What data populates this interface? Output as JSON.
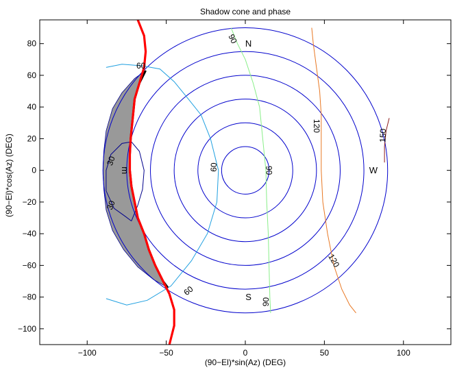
{
  "chart_data": {
    "type": "line",
    "title": "Shadow cone and phase",
    "xlabel": "(90−El)*sin(Az) (DEG)",
    "ylabel": "(90−El)*cos(Az) (DEG)",
    "xlim": [
      -130,
      130
    ],
    "ylim": [
      -110,
      95
    ],
    "xticks": [
      -100,
      -50,
      0,
      50,
      100
    ],
    "yticks": [
      -100,
      -80,
      -60,
      -40,
      -20,
      0,
      20,
      40,
      60,
      80
    ],
    "grid": false,
    "colors": {
      "circles": "#0000cc",
      "contour30": "#00008b",
      "contour60": "#1e9fe0",
      "contour90": "#88ee88",
      "contour120": "#e87722",
      "contour150": "#8b1a1a",
      "shadow_fill": "#999999",
      "shadow_edge": "#000000",
      "terminator": "#ff0000"
    },
    "elevation_circles": {
      "radii": [
        15,
        30,
        45,
        60,
        75,
        90
      ],
      "center": [
        0,
        0
      ]
    },
    "shadow_cone": {
      "inner_edge": [
        [
          -63,
          63
        ],
        [
          -67,
          55
        ],
        [
          -70,
          45
        ],
        [
          -71,
          35
        ],
        [
          -72.5,
          20
        ],
        [
          -73,
          10
        ],
        [
          -73,
          0
        ],
        [
          -72,
          -10
        ],
        [
          -70,
          -20
        ],
        [
          -68,
          -30
        ],
        [
          -64,
          -40
        ],
        [
          -61,
          -50
        ],
        [
          -57,
          -60
        ],
        [
          -52,
          -70
        ],
        [
          -49,
          -74
        ]
      ],
      "outer_edge": [
        [
          -63,
          63
        ],
        [
          -70,
          58
        ],
        [
          -78,
          49
        ],
        [
          -84,
          39
        ],
        [
          -88,
          25
        ],
        [
          -89.5,
          12
        ],
        [
          -90,
          0
        ],
        [
          -89.5,
          -12
        ],
        [
          -88,
          -25
        ],
        [
          -84,
          -38
        ],
        [
          -77,
          -50
        ],
        [
          -68,
          -61
        ],
        [
          -58,
          -69
        ],
        [
          -49,
          -74
        ]
      ]
    },
    "terminator": [
      [
        -68,
        95
      ],
      [
        -64,
        85
      ],
      [
        -63,
        75
      ],
      [
        -64,
        65
      ],
      [
        -67,
        55
      ],
      [
        -70,
        45
      ],
      [
        -71,
        35
      ],
      [
        -72.5,
        20
      ],
      [
        -73,
        10
      ],
      [
        -73,
        0
      ],
      [
        -72,
        -10
      ],
      [
        -70,
        -20
      ],
      [
        -68,
        -30
      ],
      [
        -64,
        -40
      ],
      [
        -61,
        -50
      ],
      [
        -57,
        -60
      ],
      [
        -52,
        -70
      ],
      [
        -48,
        -78
      ],
      [
        -45,
        -88
      ],
      [
        -45,
        -98
      ],
      [
        -48,
        -110
      ]
    ],
    "contours": [
      {
        "level": 30,
        "label": "30",
        "points": [
          [
            -72,
            -32
          ],
          [
            -76,
            -29
          ],
          [
            -83,
            -24
          ],
          [
            -88,
            -13
          ],
          [
            -88,
            0
          ],
          [
            -85,
            10
          ],
          [
            -78,
            17
          ],
          [
            -72,
            18
          ],
          [
            -67,
            12
          ],
          [
            -64,
            0
          ],
          [
            -65,
            -12
          ],
          [
            -68,
            -22
          ],
          [
            -72,
            -32
          ]
        ]
      },
      {
        "level": 60,
        "label": "60",
        "points": [
          [
            -88,
            65
          ],
          [
            -78,
            67
          ],
          [
            -65,
            66
          ],
          [
            -54,
            64
          ],
          [
            -45,
            56
          ],
          [
            -36,
            45
          ],
          [
            -28,
            35
          ],
          [
            -22,
            20
          ],
          [
            -17,
            0
          ],
          [
            -18,
            -20
          ],
          [
            -24,
            -40
          ],
          [
            -34,
            -57
          ],
          [
            -47,
            -73
          ],
          [
            -62,
            -82
          ],
          [
            -75,
            -85
          ],
          [
            -88,
            -81
          ]
        ]
      },
      {
        "level": 90,
        "label": "90",
        "points": [
          [
            -9,
            90
          ],
          [
            -5,
            80
          ],
          [
            0,
            70
          ],
          [
            5,
            55
          ],
          [
            9,
            40
          ],
          [
            11,
            20
          ],
          [
            13,
            0
          ],
          [
            13.5,
            -20
          ],
          [
            14.5,
            -40
          ],
          [
            15,
            -60
          ],
          [
            15.5,
            -80
          ],
          [
            16,
            -90
          ]
        ]
      },
      {
        "level": 120,
        "label": "120",
        "points": [
          [
            42,
            90
          ],
          [
            43,
            80
          ],
          [
            45,
            65
          ],
          [
            47,
            50
          ],
          [
            48,
            35
          ],
          [
            48,
            20
          ],
          [
            48,
            0
          ],
          [
            49,
            -20
          ],
          [
            52,
            -40
          ],
          [
            56,
            -60
          ],
          [
            61,
            -75
          ],
          [
            66,
            -85
          ],
          [
            70,
            -90
          ]
        ]
      },
      {
        "level": 150,
        "label": "150",
        "points": [
          [
            91,
            33
          ],
          [
            89,
            25
          ],
          [
            88,
            15
          ],
          [
            88,
            5
          ]
        ]
      }
    ],
    "contour_labels": [
      {
        "text": "90",
        "x": -8,
        "y": 83,
        "angle": 65
      },
      {
        "text": "60",
        "x": -66,
        "y": 66,
        "angle": 0
      },
      {
        "text": "120",
        "x": 45,
        "y": 28,
        "angle": 90
      },
      {
        "text": "150",
        "x": 87,
        "y": 22,
        "angle": -88
      },
      {
        "text": "30",
        "x": -85,
        "y": 6,
        "angle": -70
      },
      {
        "text": "30",
        "x": -85,
        "y": -22,
        "angle": -70
      },
      {
        "text": "60",
        "x": -20,
        "y": 2,
        "angle": -88
      },
      {
        "text": "90",
        "x": 15,
        "y": 0,
        "angle": 88
      },
      {
        "text": "120",
        "x": 56,
        "y": -57,
        "angle": 60
      },
      {
        "text": "60",
        "x": -36,
        "y": -76,
        "angle": -40
      },
      {
        "text": "90",
        "x": 13,
        "y": -83,
        "angle": -88
      }
    ],
    "annotations": [
      {
        "text": "N",
        "x": 2,
        "y": 80
      },
      {
        "text": "W",
        "x": 81,
        "y": 0
      },
      {
        "text": "S",
        "x": 2,
        "y": -80
      },
      {
        "text": "m",
        "x": -76,
        "y": 0,
        "angle": 90
      }
    ]
  }
}
